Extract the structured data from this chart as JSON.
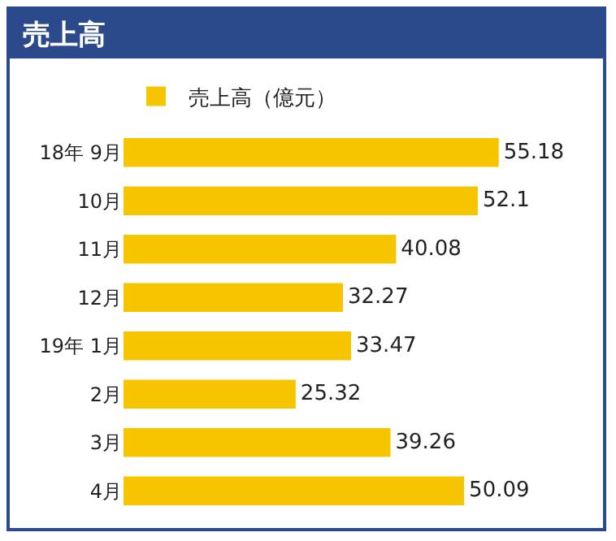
{
  "chart_data": {
    "type": "bar",
    "title": "売上高",
    "orientation": "horizontal",
    "data_labels": true,
    "legend": "top left",
    "grid": false,
    "categories": [
      "18年 9月",
      "10月",
      "11月",
      "12月",
      "19年 1月",
      "2月",
      "3月",
      "4月"
    ],
    "series": [
      {
        "name": "売上高（億元）",
        "color": "#f7c500",
        "values": [
          55.18,
          52.1,
          40.08,
          32.27,
          33.47,
          25.32,
          39.26,
          50.09
        ]
      }
    ]
  }
}
